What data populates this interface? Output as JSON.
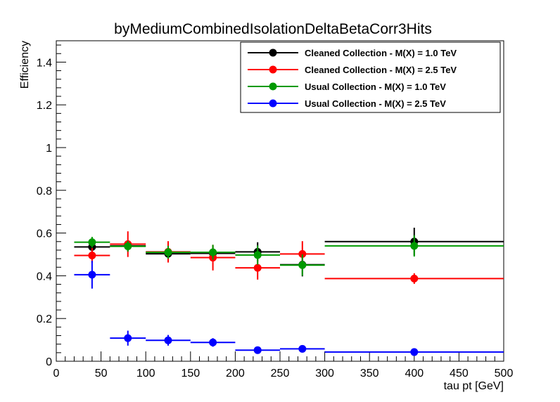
{
  "chart_data": {
    "type": "scatter",
    "title": "byMediumCombinedIsolationDeltaBetaCorr3Hits",
    "xlabel": "tau pt [GeV]",
    "ylabel": "Efficiency",
    "xlim": [
      0,
      500
    ],
    "ylim": [
      0,
      1.5
    ],
    "x_ticks": [
      "0",
      "50",
      "100",
      "150",
      "200",
      "250",
      "300",
      "350",
      "400",
      "450",
      "500"
    ],
    "y_ticks": [
      "0",
      "0.2",
      "0.4",
      "0.6",
      "0.8",
      "1",
      "1.2",
      "1.4"
    ],
    "grid": false,
    "legend_position": "top-right",
    "series": [
      {
        "name": "Cleaned Collection - M(X) = 1.0 TeV",
        "color": "#000000",
        "points": [
          {
            "x": 40,
            "xlo": 20,
            "xhi": 60,
            "y": 0.535,
            "err": 0.025
          },
          {
            "x": 80,
            "xlo": 60,
            "xhi": 100,
            "y": 0.54,
            "err": 0.025
          },
          {
            "x": 125,
            "xlo": 100,
            "xhi": 150,
            "y": 0.503,
            "err": 0.03
          },
          {
            "x": 175,
            "xlo": 150,
            "xhi": 200,
            "y": 0.505,
            "err": 0.035
          },
          {
            "x": 225,
            "xlo": 200,
            "xhi": 250,
            "y": 0.512,
            "err": 0.045
          },
          {
            "x": 275,
            "xlo": 250,
            "xhi": 300,
            "y": 0.452,
            "err": 0.055
          },
          {
            "x": 400,
            "xlo": 300,
            "xhi": 500,
            "y": 0.56,
            "err": 0.065
          }
        ]
      },
      {
        "name": "Cleaned Collection - M(X) = 2.5 TeV",
        "color": "#ff0000",
        "points": [
          {
            "x": 40,
            "xlo": 20,
            "xhi": 60,
            "y": 0.495,
            "err": 0.035
          },
          {
            "x": 80,
            "xlo": 60,
            "xhi": 100,
            "y": 0.548,
            "err": 0.06
          },
          {
            "x": 125,
            "xlo": 100,
            "xhi": 150,
            "y": 0.512,
            "err": 0.05
          },
          {
            "x": 175,
            "xlo": 150,
            "xhi": 200,
            "y": 0.485,
            "err": 0.06
          },
          {
            "x": 225,
            "xlo": 200,
            "xhi": 250,
            "y": 0.437,
            "err": 0.055
          },
          {
            "x": 275,
            "xlo": 250,
            "xhi": 300,
            "y": 0.502,
            "err": 0.06
          },
          {
            "x": 400,
            "xlo": 300,
            "xhi": 500,
            "y": 0.387,
            "err": 0.025
          }
        ]
      },
      {
        "name": "Usual Collection - M(X) = 1.0 TeV",
        "color": "#009900",
        "points": [
          {
            "x": 40,
            "xlo": 20,
            "xhi": 60,
            "y": 0.557,
            "err": 0.025
          },
          {
            "x": 80,
            "xlo": 60,
            "xhi": 100,
            "y": 0.538,
            "err": 0.025
          },
          {
            "x": 125,
            "xlo": 100,
            "xhi": 150,
            "y": 0.51,
            "err": 0.03
          },
          {
            "x": 175,
            "xlo": 150,
            "xhi": 200,
            "y": 0.51,
            "err": 0.035
          },
          {
            "x": 225,
            "xlo": 200,
            "xhi": 250,
            "y": 0.497,
            "err": 0.045
          },
          {
            "x": 275,
            "xlo": 250,
            "xhi": 300,
            "y": 0.45,
            "err": 0.05
          },
          {
            "x": 400,
            "xlo": 300,
            "xhi": 500,
            "y": 0.54,
            "err": 0.05
          }
        ]
      },
      {
        "name": "Usual Collection - M(X) = 2.5 TeV",
        "color": "#0000ff",
        "points": [
          {
            "x": 40,
            "xlo": 20,
            "xhi": 60,
            "y": 0.405,
            "err": 0.065
          },
          {
            "x": 80,
            "xlo": 60,
            "xhi": 100,
            "y": 0.108,
            "err": 0.035
          },
          {
            "x": 125,
            "xlo": 100,
            "xhi": 150,
            "y": 0.098,
            "err": 0.025
          },
          {
            "x": 175,
            "xlo": 150,
            "xhi": 200,
            "y": 0.088,
            "err": 0.02
          },
          {
            "x": 225,
            "xlo": 200,
            "xhi": 250,
            "y": 0.052,
            "err": 0.012
          },
          {
            "x": 275,
            "xlo": 250,
            "xhi": 300,
            "y": 0.058,
            "err": 0.01
          },
          {
            "x": 400,
            "xlo": 300,
            "xhi": 500,
            "y": 0.043,
            "err": 0.01
          }
        ]
      }
    ]
  }
}
